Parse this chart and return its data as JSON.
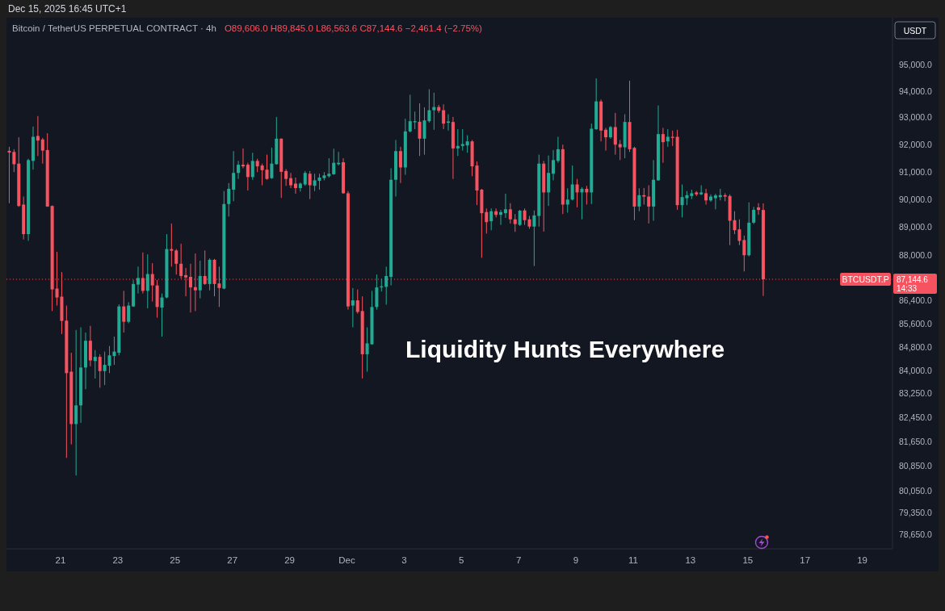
{
  "chart_data": {
    "type": "candlestick",
    "title": "Bitcoin / TetherUS PERPETUAL CONTRACT · 4h",
    "subtitle": "O89,606.0 H89,845.0 L86,563.6 C87,144.6 −2,461.4 (−2.75%)",
    "ylabel": "USDT",
    "log": true,
    "xlim": [
      "2025-11-19T02:40",
      "2025-12-20T01:20"
    ],
    "xticks": [
      {
        "value": "2025-11-21",
        "label": "21"
      },
      {
        "value": "2025-11-23",
        "label": "23"
      },
      {
        "value": "2025-11-25",
        "label": "25"
      },
      {
        "value": "2025-11-27",
        "label": "27"
      },
      {
        "value": "2025-11-29",
        "label": "29"
      },
      {
        "value": "2025-12-01",
        "label": "Dec"
      },
      {
        "value": "2025-12-03",
        "label": "3"
      },
      {
        "value": "2025-12-05",
        "label": "5"
      },
      {
        "value": "2025-12-07",
        "label": "7"
      },
      {
        "value": "2025-12-09",
        "label": "9"
      },
      {
        "value": "2025-12-11",
        "label": "11"
      },
      {
        "value": "2025-12-13",
        "label": "13"
      },
      {
        "value": "2025-12-15",
        "label": "15"
      },
      {
        "value": "2025-12-17",
        "label": "17"
      },
      {
        "value": "2025-12-19",
        "label": "19"
      }
    ],
    "ylim": [
      78200,
      96800
    ],
    "yticks": [
      {
        "value": 95000,
        "label": "95,000.0"
      },
      {
        "value": 94000,
        "label": "94,000.0"
      },
      {
        "value": 93000,
        "label": "93,000.0"
      },
      {
        "value": 92000,
        "label": "92,000.0"
      },
      {
        "value": 91000,
        "label": "91,000.0"
      },
      {
        "value": 90000,
        "label": "90,000.0"
      },
      {
        "value": 89000,
        "label": "89,000.0"
      },
      {
        "value": 88000,
        "label": "88,000.0"
      },
      {
        "value": 86400,
        "label": "86,400.0"
      },
      {
        "value": 85600,
        "label": "85,600.0"
      },
      {
        "value": 84800,
        "label": "84,800.0"
      },
      {
        "value": 84000,
        "label": "84,000.0"
      },
      {
        "value": 83250,
        "label": "83,250.0"
      },
      {
        "value": 82450,
        "label": "82,450.0"
      },
      {
        "value": 81650,
        "label": "81,650.0"
      },
      {
        "value": 80850,
        "label": "80,850.0"
      },
      {
        "value": 80050,
        "label": "80,050.0"
      },
      {
        "value": 79350,
        "label": "79,350.0"
      },
      {
        "value": 78650,
        "label": "78,650.0"
      }
    ],
    "x": [
      "2025-11-19T05:00",
      "2025-11-19T09:00",
      "2025-11-19T13:00",
      "2025-11-19T17:00",
      "2025-11-19T21:00",
      "2025-11-20T01:00",
      "2025-11-20T05:00",
      "2025-11-20T09:00",
      "2025-11-20T13:00",
      "2025-11-20T17:00",
      "2025-11-20T21:00",
      "2025-11-21T01:00",
      "2025-11-21T05:00",
      "2025-11-21T09:00",
      "2025-11-21T13:00",
      "2025-11-21T17:00",
      "2025-11-21T21:00",
      "2025-11-22T01:00",
      "2025-11-22T05:00",
      "2025-11-22T09:00",
      "2025-11-22T13:00",
      "2025-11-22T17:00",
      "2025-11-22T21:00",
      "2025-11-23T01:00",
      "2025-11-23T05:00",
      "2025-11-23T09:00",
      "2025-11-23T13:00",
      "2025-11-23T17:00",
      "2025-11-23T21:00",
      "2025-11-24T01:00",
      "2025-11-24T05:00",
      "2025-11-24T09:00",
      "2025-11-24T13:00",
      "2025-11-24T17:00",
      "2025-11-24T21:00",
      "2025-11-25T01:00",
      "2025-11-25T05:00",
      "2025-11-25T09:00",
      "2025-11-25T13:00",
      "2025-11-25T17:00",
      "2025-11-25T21:00",
      "2025-11-26T01:00",
      "2025-11-26T05:00",
      "2025-11-26T09:00",
      "2025-11-26T13:00",
      "2025-11-26T17:00",
      "2025-11-26T21:00",
      "2025-11-27T01:00",
      "2025-11-27T05:00",
      "2025-11-27T09:00",
      "2025-11-27T13:00",
      "2025-11-27T17:00",
      "2025-11-27T21:00",
      "2025-11-28T01:00",
      "2025-11-28T05:00",
      "2025-11-28T09:00",
      "2025-11-28T13:00",
      "2025-11-28T17:00",
      "2025-11-28T21:00",
      "2025-11-29T01:00",
      "2025-11-29T05:00",
      "2025-11-29T09:00",
      "2025-11-29T13:00",
      "2025-11-29T17:00",
      "2025-11-29T21:00",
      "2025-11-30T01:00",
      "2025-11-30T05:00",
      "2025-11-30T09:00",
      "2025-11-30T13:00",
      "2025-11-30T17:00",
      "2025-11-30T21:00",
      "2025-12-01T01:00",
      "2025-12-01T05:00",
      "2025-12-01T09:00",
      "2025-12-01T13:00",
      "2025-12-01T17:00",
      "2025-12-01T21:00",
      "2025-12-02T01:00",
      "2025-12-02T05:00",
      "2025-12-02T09:00",
      "2025-12-02T13:00",
      "2025-12-02T17:00",
      "2025-12-02T21:00",
      "2025-12-03T01:00",
      "2025-12-03T05:00",
      "2025-12-03T09:00",
      "2025-12-03T13:00",
      "2025-12-03T17:00",
      "2025-12-03T21:00",
      "2025-12-04T01:00",
      "2025-12-04T05:00",
      "2025-12-04T09:00",
      "2025-12-04T13:00",
      "2025-12-04T17:00",
      "2025-12-04T21:00",
      "2025-12-05T01:00",
      "2025-12-05T05:00",
      "2025-12-05T09:00",
      "2025-12-05T13:00",
      "2025-12-05T17:00",
      "2025-12-05T21:00",
      "2025-12-06T01:00",
      "2025-12-06T05:00",
      "2025-12-06T09:00",
      "2025-12-06T13:00",
      "2025-12-06T17:00",
      "2025-12-06T21:00",
      "2025-12-07T01:00",
      "2025-12-07T05:00",
      "2025-12-07T09:00",
      "2025-12-07T13:00",
      "2025-12-07T17:00",
      "2025-12-07T21:00",
      "2025-12-08T01:00",
      "2025-12-08T05:00",
      "2025-12-08T09:00",
      "2025-12-08T13:00",
      "2025-12-08T17:00",
      "2025-12-08T21:00",
      "2025-12-09T01:00",
      "2025-12-09T05:00",
      "2025-12-09T09:00",
      "2025-12-09T13:00",
      "2025-12-09T17:00",
      "2025-12-09T21:00",
      "2025-12-10T01:00",
      "2025-12-10T05:00",
      "2025-12-10T09:00",
      "2025-12-10T13:00",
      "2025-12-10T17:00",
      "2025-12-10T21:00",
      "2025-12-11T01:00",
      "2025-12-11T05:00",
      "2025-12-11T09:00",
      "2025-12-11T13:00",
      "2025-12-11T17:00",
      "2025-12-11T21:00",
      "2025-12-12T01:00",
      "2025-12-12T05:00",
      "2025-12-12T09:00",
      "2025-12-12T13:00",
      "2025-12-12T17:00",
      "2025-12-12T21:00",
      "2025-12-13T01:00",
      "2025-12-13T05:00",
      "2025-12-13T09:00",
      "2025-12-13T13:00",
      "2025-12-13T17:00",
      "2025-12-13T21:00",
      "2025-12-14T01:00",
      "2025-12-14T05:00",
      "2025-12-14T09:00",
      "2025-12-14T13:00",
      "2025-12-14T17:00",
      "2025-12-14T21:00",
      "2025-12-15T01:00",
      "2025-12-15T05:00",
      "2025-12-15T09:00",
      "2025-12-15T13:00"
    ],
    "ohlc": [
      [
        91760,
        91910,
        89850,
        91700
      ],
      [
        91720,
        91820,
        90980,
        91270
      ],
      [
        91290,
        92260,
        89720,
        89750
      ],
      [
        89800,
        90090,
        88550,
        88740
      ],
      [
        88740,
        91470,
        88500,
        91420
      ],
      [
        91390,
        92660,
        91070,
        92280
      ],
      [
        92310,
        93050,
        91570,
        92140
      ],
      [
        92180,
        92240,
        91290,
        91770
      ],
      [
        91790,
        92410,
        89720,
        89730
      ],
      [
        89750,
        89770,
        86040,
        86790
      ],
      [
        86820,
        88110,
        86230,
        86510
      ],
      [
        86540,
        87400,
        85250,
        85700
      ],
      [
        85710,
        86230,
        81110,
        83920
      ],
      [
        83970,
        84610,
        81550,
        82220
      ],
      [
        82220,
        85390,
        80540,
        82840
      ],
      [
        82840,
        85480,
        82260,
        84110
      ],
      [
        84110,
        85300,
        83380,
        85020
      ],
      [
        85020,
        85530,
        84150,
        84350
      ],
      [
        84330,
        84700,
        83740,
        84470
      ],
      [
        84470,
        84560,
        83430,
        83990
      ],
      [
        83990,
        84650,
        83520,
        84200
      ],
      [
        84170,
        84840,
        83920,
        84520
      ],
      [
        84500,
        85160,
        84200,
        84650
      ],
      [
        84610,
        86270,
        84520,
        86200
      ],
      [
        86200,
        86740,
        85300,
        85670
      ],
      [
        85670,
        86350,
        85620,
        86230
      ],
      [
        86200,
        87120,
        86180,
        86980
      ],
      [
        86960,
        87590,
        86650,
        87190
      ],
      [
        87190,
        88090,
        86650,
        86740
      ],
      [
        86740,
        88020,
        86130,
        87330
      ],
      [
        87330,
        87710,
        86370,
        86930
      ],
      [
        86930,
        87120,
        85810,
        86180
      ],
      [
        86160,
        86650,
        85160,
        86510
      ],
      [
        86510,
        88740,
        86480,
        88210
      ],
      [
        88210,
        89120,
        87590,
        88150
      ],
      [
        88160,
        88210,
        87310,
        87690
      ],
      [
        87690,
        88400,
        87170,
        87260
      ],
      [
        87290,
        87540,
        86550,
        87210
      ],
      [
        87230,
        87690,
        85990,
        86860
      ],
      [
        86870,
        88050,
        86040,
        86760
      ],
      [
        86760,
        87800,
        86480,
        87260
      ],
      [
        87260,
        88160,
        86950,
        86980
      ],
      [
        86980,
        87880,
        86760,
        87830
      ],
      [
        87830,
        87860,
        86550,
        86980
      ],
      [
        87000,
        87590,
        86180,
        86840
      ],
      [
        86820,
        90290,
        86800,
        89820
      ],
      [
        89820,
        90580,
        89370,
        90370
      ],
      [
        90340,
        91750,
        89920,
        90950
      ],
      [
        90950,
        91390,
        90730,
        91250
      ],
      [
        91250,
        91850,
        91120,
        91190
      ],
      [
        91250,
        91320,
        90310,
        90800
      ],
      [
        90800,
        91690,
        90700,
        91390
      ],
      [
        91390,
        91470,
        90980,
        91190
      ],
      [
        91220,
        91290,
        90500,
        91050
      ],
      [
        91070,
        91620,
        90700,
        90730
      ],
      [
        90760,
        91880,
        90730,
        91290
      ],
      [
        91270,
        93020,
        91250,
        92210
      ],
      [
        92210,
        92220,
        90040,
        90990
      ],
      [
        91020,
        91090,
        90480,
        90730
      ],
      [
        90760,
        90950,
        90400,
        90500
      ],
      [
        90560,
        90780,
        90190,
        90400
      ],
      [
        90400,
        90600,
        90270,
        90560
      ],
      [
        90530,
        91020,
        90480,
        90950
      ],
      [
        90920,
        91020,
        90000,
        90500
      ],
      [
        90480,
        90920,
        90290,
        90680
      ],
      [
        90660,
        90920,
        90340,
        90780
      ],
      [
        90760,
        90980,
        90680,
        90860
      ],
      [
        90830,
        91490,
        90780,
        90920
      ],
      [
        90900,
        91840,
        90880,
        91320
      ],
      [
        91270,
        91720,
        91220,
        91320
      ],
      [
        91340,
        91490,
        90190,
        90210
      ],
      [
        90210,
        90290,
        86090,
        86200
      ],
      [
        86230,
        86840,
        85480,
        86410
      ],
      [
        86410,
        86790,
        85950,
        86010
      ],
      [
        86040,
        86550,
        83740,
        84560
      ],
      [
        84560,
        85480,
        83970,
        84930
      ],
      [
        84900,
        86740,
        84880,
        86180
      ],
      [
        86180,
        87310,
        86090,
        86860
      ],
      [
        86860,
        87170,
        86720,
        86900
      ],
      [
        86880,
        87590,
        86260,
        87260
      ],
      [
        87230,
        91120,
        86930,
        90700
      ],
      [
        90700,
        92160,
        90090,
        91750
      ],
      [
        91750,
        91910,
        90580,
        91150
      ],
      [
        91150,
        92950,
        90880,
        92480
      ],
      [
        92480,
        93850,
        92440,
        92860
      ],
      [
        92820,
        93220,
        92560,
        92860
      ],
      [
        92840,
        93530,
        91570,
        92210
      ],
      [
        92210,
        93380,
        91620,
        92890
      ],
      [
        92860,
        94060,
        92810,
        93270
      ],
      [
        93270,
        93930,
        92540,
        93390
      ],
      [
        93390,
        93470,
        93170,
        93250
      ],
      [
        93270,
        93490,
        92560,
        92770
      ],
      [
        92800,
        93120,
        92510,
        92850
      ],
      [
        92830,
        93020,
        90730,
        91850
      ],
      [
        91850,
        92560,
        91570,
        91940
      ],
      [
        91940,
        92560,
        91770,
        92010
      ],
      [
        91960,
        92340,
        91690,
        92110
      ],
      [
        92110,
        92160,
        90830,
        91190
      ],
      [
        91220,
        91370,
        89780,
        90310
      ],
      [
        90340,
        90370,
        87900,
        89490
      ],
      [
        89530,
        89660,
        88760,
        89170
      ],
      [
        89200,
        89660,
        88880,
        89560
      ],
      [
        89560,
        89660,
        89340,
        89430
      ],
      [
        89430,
        89610,
        89070,
        89530
      ],
      [
        89490,
        90190,
        89320,
        89630
      ],
      [
        89630,
        89850,
        89120,
        89270
      ],
      [
        89270,
        89460,
        88820,
        89100
      ],
      [
        89070,
        89610,
        89030,
        89580
      ],
      [
        89590,
        89660,
        89070,
        89240
      ],
      [
        89270,
        89390,
        88930,
        89010
      ],
      [
        89010,
        89590,
        87610,
        89410
      ],
      [
        89390,
        91620,
        89010,
        91290
      ],
      [
        91290,
        91390,
        88830,
        90240
      ],
      [
        90240,
        91590,
        89750,
        90950
      ],
      [
        90920,
        91790,
        90680,
        91420
      ],
      [
        91390,
        92280,
        91320,
        91820
      ],
      [
        91820,
        91990,
        89460,
        89800
      ],
      [
        89800,
        90390,
        89510,
        89980
      ],
      [
        89980,
        91220,
        89950,
        90530
      ],
      [
        90530,
        90730,
        89700,
        90240
      ],
      [
        90240,
        90430,
        89270,
        90370
      ],
      [
        90370,
        90480,
        89800,
        90240
      ],
      [
        90240,
        92770,
        89820,
        92580
      ],
      [
        92560,
        94470,
        92540,
        93600
      ],
      [
        93600,
        93670,
        92110,
        92510
      ],
      [
        92540,
        92610,
        91770,
        92260
      ],
      [
        92260,
        92680,
        92210,
        92640
      ],
      [
        92640,
        93170,
        91620,
        91990
      ],
      [
        92010,
        92160,
        91420,
        91890
      ],
      [
        91890,
        93120,
        91490,
        92830
      ],
      [
        92830,
        94380,
        91720,
        91820
      ],
      [
        91870,
        91910,
        89240,
        89730
      ],
      [
        89730,
        90390,
        89560,
        90140
      ],
      [
        90140,
        90400,
        89800,
        90090
      ],
      [
        90090,
        90500,
        89120,
        89730
      ],
      [
        89730,
        91420,
        89220,
        90700
      ],
      [
        90680,
        93450,
        90660,
        92380
      ],
      [
        92380,
        92610,
        91320,
        92080
      ],
      [
        92110,
        92560,
        91910,
        92280
      ],
      [
        92280,
        92510,
        91940,
        92240
      ],
      [
        92280,
        92540,
        89610,
        89780
      ],
      [
        89780,
        90530,
        89340,
        90070
      ],
      [
        90030,
        90290,
        89780,
        90140
      ],
      [
        90110,
        90340,
        90000,
        90210
      ],
      [
        90240,
        90290,
        90110,
        90170
      ],
      [
        90170,
        90500,
        90140,
        90240
      ],
      [
        90210,
        90370,
        89800,
        89950
      ],
      [
        89950,
        90170,
        89900,
        90090
      ],
      [
        90030,
        90190,
        89630,
        90130
      ],
      [
        90070,
        90370,
        89950,
        90140
      ],
      [
        90140,
        90210,
        89920,
        90090
      ],
      [
        90110,
        90170,
        88350,
        89220
      ],
      [
        89240,
        89560,
        88740,
        88880
      ],
      [
        88910,
        89270,
        88350,
        88500
      ],
      [
        88530,
        88690,
        87420,
        87990
      ],
      [
        87990,
        89880,
        87950,
        89150
      ],
      [
        89150,
        89720,
        89100,
        89610
      ],
      [
        89700,
        89850,
        89430,
        89606.0
      ],
      [
        89606.0,
        89845.0,
        86563.6,
        87144.6
      ]
    ],
    "colors": [
      "#f7525f",
      "#f7525f",
      "#f7525f",
      "#f7525f",
      "#22ab94",
      "#22ab94",
      "#f7525f",
      "#f7525f",
      "#f7525f",
      "#f7525f",
      "#f7525f",
      "#f7525f",
      "#f7525f",
      "#f7525f",
      "#22ab94",
      "#22ab94",
      "#22ab94",
      "#f7525f",
      "#22ab94",
      "#f7525f",
      "#22ab94",
      "#22ab94",
      "#22ab94",
      "#22ab94",
      "#f7525f",
      "#22ab94",
      "#22ab94",
      "#22ab94",
      "#f7525f",
      "#22ab94",
      "#f7525f",
      "#f7525f",
      "#22ab94",
      "#22ab94",
      "#f7525f",
      "#f7525f",
      "#f7525f",
      "#f7525f",
      "#f7525f",
      "#f7525f",
      "#22ab94",
      "#f7525f",
      "#22ab94",
      "#f7525f",
      "#f7525f",
      "#22ab94",
      "#22ab94",
      "#22ab94",
      "#22ab94",
      "#f7525f",
      "#f7525f",
      "#22ab94",
      "#f7525f",
      "#f7525f",
      "#f7525f",
      "#22ab94",
      "#22ab94",
      "#f7525f",
      "#f7525f",
      "#f7525f",
      "#f7525f",
      "#22ab94",
      "#22ab94",
      "#f7525f",
      "#22ab94",
      "#22ab94",
      "#22ab94",
      "#22ab94",
      "#22ab94",
      "#22ab94",
      "#f7525f",
      "#f7525f",
      "#22ab94",
      "#f7525f",
      "#f7525f",
      "#22ab94",
      "#22ab94",
      "#22ab94",
      "#22ab94",
      "#22ab94",
      "#22ab94",
      "#22ab94",
      "#f7525f",
      "#22ab94",
      "#22ab94",
      "#22ab94",
      "#f7525f",
      "#22ab94",
      "#22ab94",
      "#22ab94",
      "#f7525f",
      "#f7525f",
      "#22ab94",
      "#f7525f",
      "#22ab94",
      "#22ab94",
      "#22ab94",
      "#f7525f",
      "#f7525f",
      "#f7525f",
      "#f7525f",
      "#22ab94",
      "#f7525f",
      "#22ab94",
      "#22ab94",
      "#f7525f",
      "#f7525f",
      "#22ab94",
      "#f7525f",
      "#f7525f",
      "#22ab94",
      "#22ab94",
      "#f7525f",
      "#22ab94",
      "#22ab94",
      "#22ab94",
      "#f7525f",
      "#22ab94",
      "#22ab94",
      "#f7525f",
      "#22ab94",
      "#f7525f",
      "#22ab94",
      "#22ab94",
      "#f7525f",
      "#f7525f",
      "#22ab94",
      "#f7525f",
      "#f7525f",
      "#22ab94",
      "#f7525f",
      "#f7525f",
      "#22ab94",
      "#f7525f",
      "#f7525f",
      "#22ab94",
      "#22ab94",
      "#f7525f",
      "#22ab94",
      "#f7525f",
      "#f7525f",
      "#22ab94",
      "#22ab94",
      "#22ab94",
      "#f7525f",
      "#22ab94",
      "#f7525f",
      "#22ab94",
      "#22ab94",
      "#22ab94",
      "#f7525f",
      "#f7525f",
      "#f7525f",
      "#f7525f",
      "#f7525f",
      "#22ab94",
      "#22ab94",
      "#f7525f",
      "#f7525f"
    ],
    "ref_lines": [
      {
        "axis": "y",
        "value": 87144.6,
        "label": "BTCUSDT.P",
        "color": "#f7525f",
        "line_style": "dotted"
      }
    ],
    "annotations": [
      "Dec 15, 2025 16:45 UTC+1",
      "Liquidity Hunts Everywhere",
      "87,144.6",
      "14:33"
    ]
  }
}
